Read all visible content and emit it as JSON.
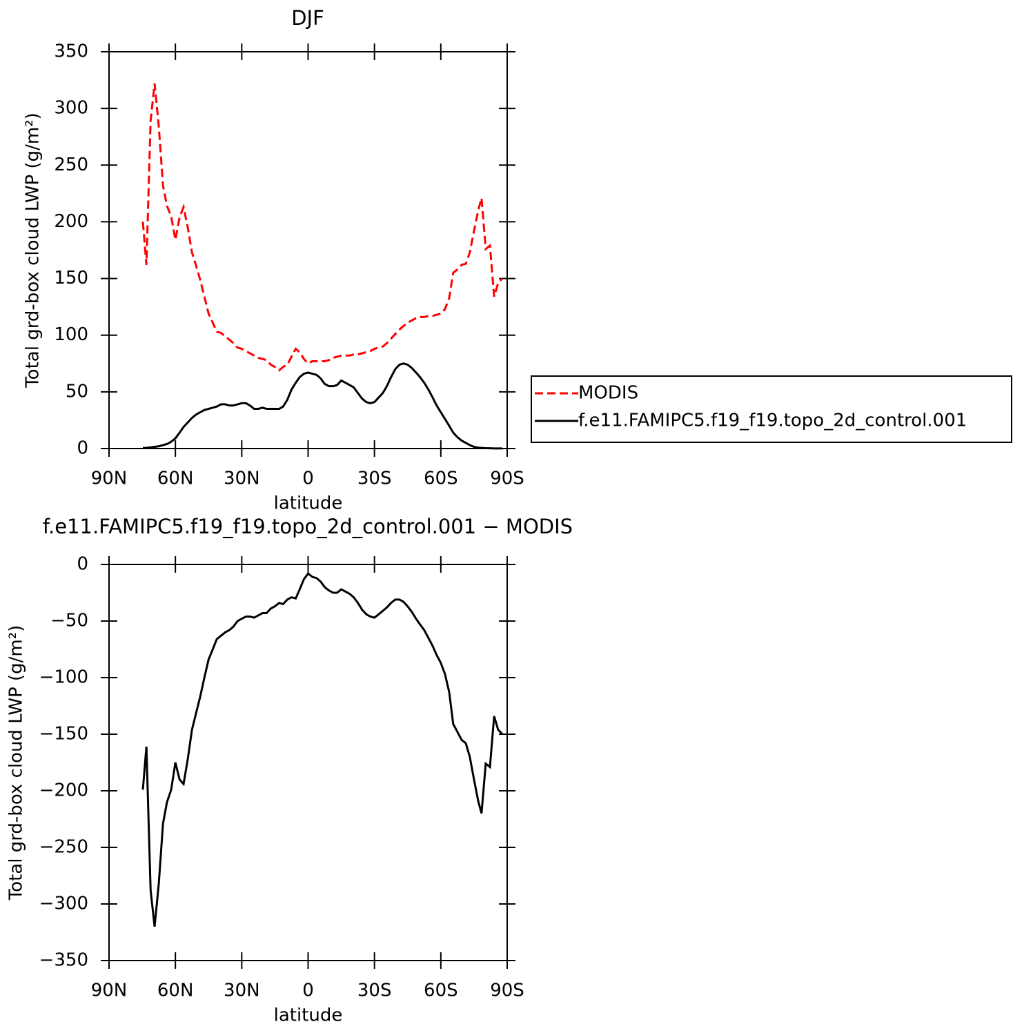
{
  "chart_data": [
    {
      "type": "line",
      "title": "DJF",
      "xlabel": "latitude",
      "ylabel": "Total grd-box cloud LWP (g/m²)",
      "xlim": [
        90,
        -90
      ],
      "xticks": [
        {
          "value": 90,
          "label": "90N"
        },
        {
          "value": 60,
          "label": "60N"
        },
        {
          "value": 30,
          "label": "30N"
        },
        0,
        {
          "value": -30,
          "label": "30S"
        },
        {
          "value": -60,
          "label": "60S"
        },
        {
          "value": -90,
          "label": "90S"
        }
      ],
      "ylim": [
        0,
        350
      ],
      "yticks": [
        0,
        50,
        100,
        150,
        200,
        250,
        300,
        350
      ],
      "legend": "right",
      "x": [
        74.7,
        73.1,
        71.2,
        69.4,
        67.5,
        65.6,
        63.8,
        61.9,
        60,
        58.1,
        56.3,
        54.4,
        52.5,
        50.6,
        48.8,
        46.9,
        45,
        43.1,
        41.3,
        39.4,
        37.5,
        35.6,
        33.8,
        31.9,
        30,
        28.1,
        26.3,
        24.4,
        22.5,
        20.6,
        18.8,
        16.9,
        15,
        13.1,
        11.3,
        9.4,
        7.5,
        5.6,
        3.8,
        1.9,
        0,
        -1.9,
        -3.8,
        -5.6,
        -7.5,
        -9.4,
        -11.3,
        -13.1,
        -15,
        -16.9,
        -18.8,
        -20.6,
        -22.5,
        -24.4,
        -26.3,
        -28.1,
        -30,
        -31.9,
        -33.8,
        -35.6,
        -37.5,
        -39.4,
        -41.3,
        -43.1,
        -45,
        -46.9,
        -48.8,
        -50.6,
        -52.5,
        -54.4,
        -56.3,
        -58.1,
        -60,
        -61.9,
        -63.8,
        -65.6,
        -67.5,
        -69.4,
        -71.3,
        -73.1,
        -75,
        -76.9,
        -78.4,
        -80.3,
        -82.2,
        -84.1,
        -85.9,
        -87.8
      ],
      "series": [
        {
          "name": "MODIS",
          "color": "#ff0000",
          "dashed": true,
          "values": [
            200,
            162,
            289,
            322,
            284,
            232,
            214,
            205,
            184,
            204,
            213,
            195,
            173,
            161,
            149,
            134,
            119,
            111,
            103,
            102,
            99,
            96,
            93,
            89,
            88,
            86,
            84,
            82,
            80,
            79,
            78,
            74,
            72,
            69,
            72,
            74,
            81,
            88,
            85,
            79,
            75,
            77,
            77,
            77,
            77,
            78,
            80,
            81,
            82,
            82,
            82,
            83,
            83,
            84,
            85,
            86,
            88,
            89,
            90,
            93,
            97,
            101,
            105,
            108,
            111,
            113,
            115,
            116,
            116,
            117,
            117,
            118,
            119,
            123,
            133,
            155,
            158,
            162,
            163,
            173,
            192,
            210,
            221,
            176,
            179,
            134,
            146,
            150
          ]
        },
        {
          "name": "f.e11.FAMIPC5.f19_f19.topo_2d_control.001",
          "color": "#000000",
          "dashed": false,
          "values": [
            0.5,
            0.6,
            1,
            1.5,
            2,
            3,
            4,
            6,
            9,
            14,
            19,
            23,
            27,
            30,
            32,
            34,
            35,
            36,
            37,
            39,
            39,
            38,
            38,
            39,
            40,
            40,
            38,
            35,
            35,
            36,
            35,
            35,
            35,
            35,
            37,
            43,
            52,
            58,
            63,
            66,
            67,
            66,
            65,
            62,
            57,
            55,
            55,
            56,
            60,
            58,
            56,
            54,
            49,
            44,
            41,
            40,
            41,
            45,
            49,
            55,
            63,
            70,
            74,
            75,
            74,
            71,
            67,
            63,
            58,
            52,
            45,
            38,
            32,
            26,
            20,
            14,
            10,
            7,
            5,
            3,
            1.5,
            0.8,
            0.5,
            0.3,
            0.2,
            0.1,
            0.1,
            0.1
          ]
        }
      ]
    },
    {
      "type": "line",
      "title": "f.e11.FAMIPC5.f19_f19.topo_2d_control.001 − MODIS",
      "xlabel": "latitude",
      "ylabel": "Total grd-box cloud LWP (g/m²)",
      "xlim": [
        90,
        -90
      ],
      "xticks": [
        {
          "value": 90,
          "label": "90N"
        },
        {
          "value": 60,
          "label": "60N"
        },
        {
          "value": 30,
          "label": "30N"
        },
        0,
        {
          "value": -30,
          "label": "30S"
        },
        {
          "value": -60,
          "label": "60S"
        },
        {
          "value": -90,
          "label": "90S"
        }
      ],
      "ylim": [
        -350,
        0
      ],
      "yticks": [
        0,
        {
          "value": -50,
          "label": "−50"
        },
        {
          "value": -100,
          "label": "−100"
        },
        {
          "value": -150,
          "label": "−150"
        },
        {
          "value": -200,
          "label": "−200"
        },
        {
          "value": -250,
          "label": "−250"
        },
        {
          "value": -300,
          "label": "−300"
        },
        {
          "value": -350,
          "label": "−350"
        }
      ],
      "color": "#000000",
      "x": [
        74.7,
        73.1,
        71.2,
        69.4,
        67.5,
        65.6,
        63.8,
        61.9,
        60,
        58.1,
        56.3,
        54.4,
        52.5,
        50.6,
        48.8,
        46.9,
        45,
        43.1,
        41.3,
        39.4,
        37.5,
        35.6,
        33.8,
        31.9,
        30,
        28.1,
        26.3,
        24.4,
        22.5,
        20.6,
        18.8,
        16.9,
        15,
        13.1,
        11.3,
        9.4,
        7.5,
        5.6,
        3.8,
        1.9,
        0,
        -1.9,
        -3.8,
        -5.6,
        -7.5,
        -9.4,
        -11.3,
        -13.1,
        -15,
        -16.9,
        -18.8,
        -20.6,
        -22.5,
        -24.4,
        -26.3,
        -28.1,
        -30,
        -31.9,
        -33.8,
        -35.6,
        -37.5,
        -39.4,
        -41.3,
        -43.1,
        -45,
        -46.9,
        -48.8,
        -50.6,
        -52.5,
        -54.4,
        -56.3,
        -58.1,
        -60,
        -61.9,
        -63.8,
        -65.6,
        -67.5,
        -69.4,
        -71.3,
        -73.1,
        -75,
        -76.9,
        -78.4,
        -80.3,
        -82.2,
        -84.1,
        -85.9,
        -87.8
      ],
      "values": [
        -199,
        -161,
        -288,
        -320,
        -282,
        -229,
        -210,
        -199,
        -175,
        -190,
        -194,
        -172,
        -146,
        -131,
        -117,
        -100,
        -84,
        -75,
        -66,
        -63,
        -60,
        -58,
        -55,
        -50,
        -48,
        -46,
        -46,
        -47,
        -45,
        -43,
        -43,
        -39,
        -37,
        -34,
        -35,
        -31,
        -29,
        -30,
        -22,
        -13,
        -8,
        -11,
        -12,
        -15,
        -20,
        -23,
        -25,
        -25,
        -22,
        -24,
        -26,
        -29,
        -34,
        -40,
        -44,
        -46,
        -47,
        -44,
        -41,
        -38,
        -34,
        -31,
        -31,
        -33,
        -37,
        -42,
        -48,
        -53,
        -58,
        -65,
        -72,
        -80,
        -87,
        -97,
        -113,
        -141,
        -148,
        -155,
        -158,
        -170,
        -190,
        -209,
        -220,
        -176,
        -179,
        -134,
        -146,
        -150
      ]
    }
  ]
}
